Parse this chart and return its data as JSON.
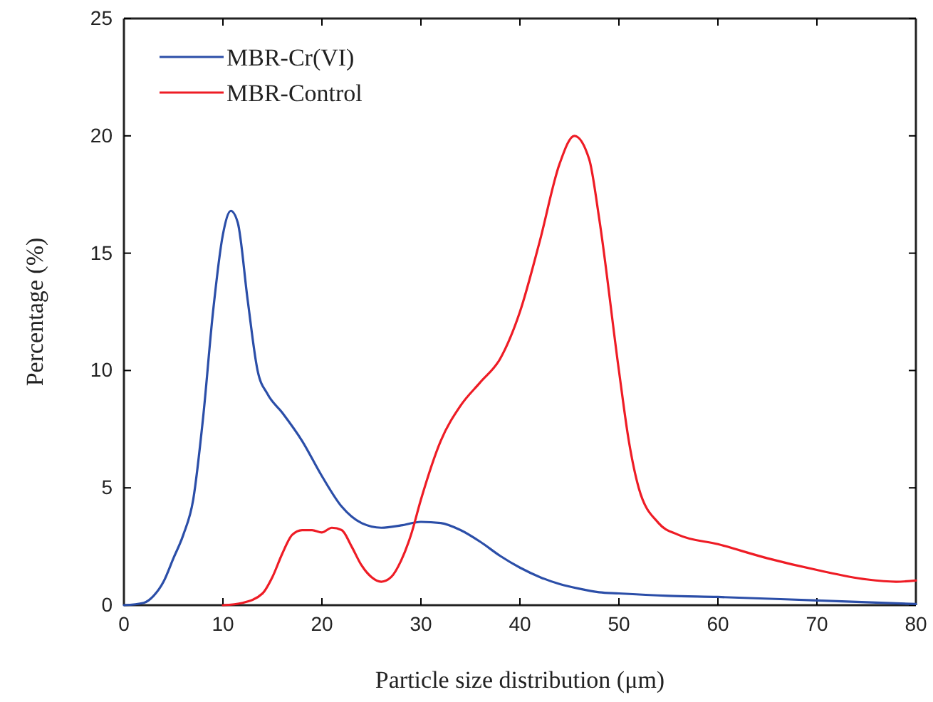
{
  "chart_data": {
    "type": "line",
    "xlabel": "Particle size distribution (μm)",
    "ylabel": "Percentage (%)",
    "xlim": [
      0,
      80
    ],
    "xticks": [
      0,
      10,
      20,
      30,
      40,
      50,
      60,
      70,
      80
    ],
    "ylim": [
      0,
      25
    ],
    "yticks": [
      0,
      5,
      10,
      15,
      20,
      25
    ],
    "legend": "top left",
    "marker": "none",
    "line_style": "solid",
    "grid": false,
    "series": [
      {
        "name": "MBR-Cr(VI)",
        "color": "#2b4ea8",
        "x": [
          0,
          2,
          3,
          4,
          5,
          6,
          7,
          8,
          9,
          10,
          10.8,
          11.5,
          12.5,
          13.5,
          14.5,
          16,
          18,
          20,
          22,
          24,
          26,
          28,
          30,
          32,
          34,
          36,
          38,
          40,
          42,
          44,
          46,
          48,
          50,
          55,
          60,
          70,
          80
        ],
        "values": [
          0,
          0.1,
          0.4,
          1.0,
          2.0,
          3.0,
          4.5,
          8,
          12.5,
          15.8,
          16.8,
          16.3,
          13,
          10,
          9,
          8.2,
          7,
          5.5,
          4.2,
          3.5,
          3.3,
          3.4,
          3.55,
          3.5,
          3.2,
          2.7,
          2.1,
          1.6,
          1.2,
          0.9,
          0.7,
          0.55,
          0.5,
          0.4,
          0.35,
          0.2,
          0.05
        ]
      },
      {
        "name": "MBR-Control",
        "color": "#ee1c25",
        "x": [
          10,
          12,
          14,
          15,
          16,
          17,
          18,
          19,
          20,
          21,
          22,
          23,
          24,
          25,
          26,
          27,
          28,
          29,
          30,
          32,
          34,
          36,
          38,
          40,
          42,
          44,
          45.5,
          47,
          48,
          50,
          51,
          52,
          54,
          56,
          60,
          65,
          70,
          75,
          78,
          80
        ],
        "values": [
          0,
          0.1,
          0.5,
          1.2,
          2.2,
          3.0,
          3.2,
          3.2,
          3.1,
          3.3,
          3.2,
          2.5,
          1.7,
          1.2,
          1.0,
          1.2,
          1.9,
          3.0,
          4.5,
          7.0,
          8.5,
          9.5,
          10.5,
          12.5,
          15.5,
          18.8,
          20,
          19,
          16.5,
          10,
          7,
          5,
          3.5,
          3.0,
          2.6,
          2.0,
          1.5,
          1.1,
          1.0,
          1.05
        ]
      }
    ]
  }
}
